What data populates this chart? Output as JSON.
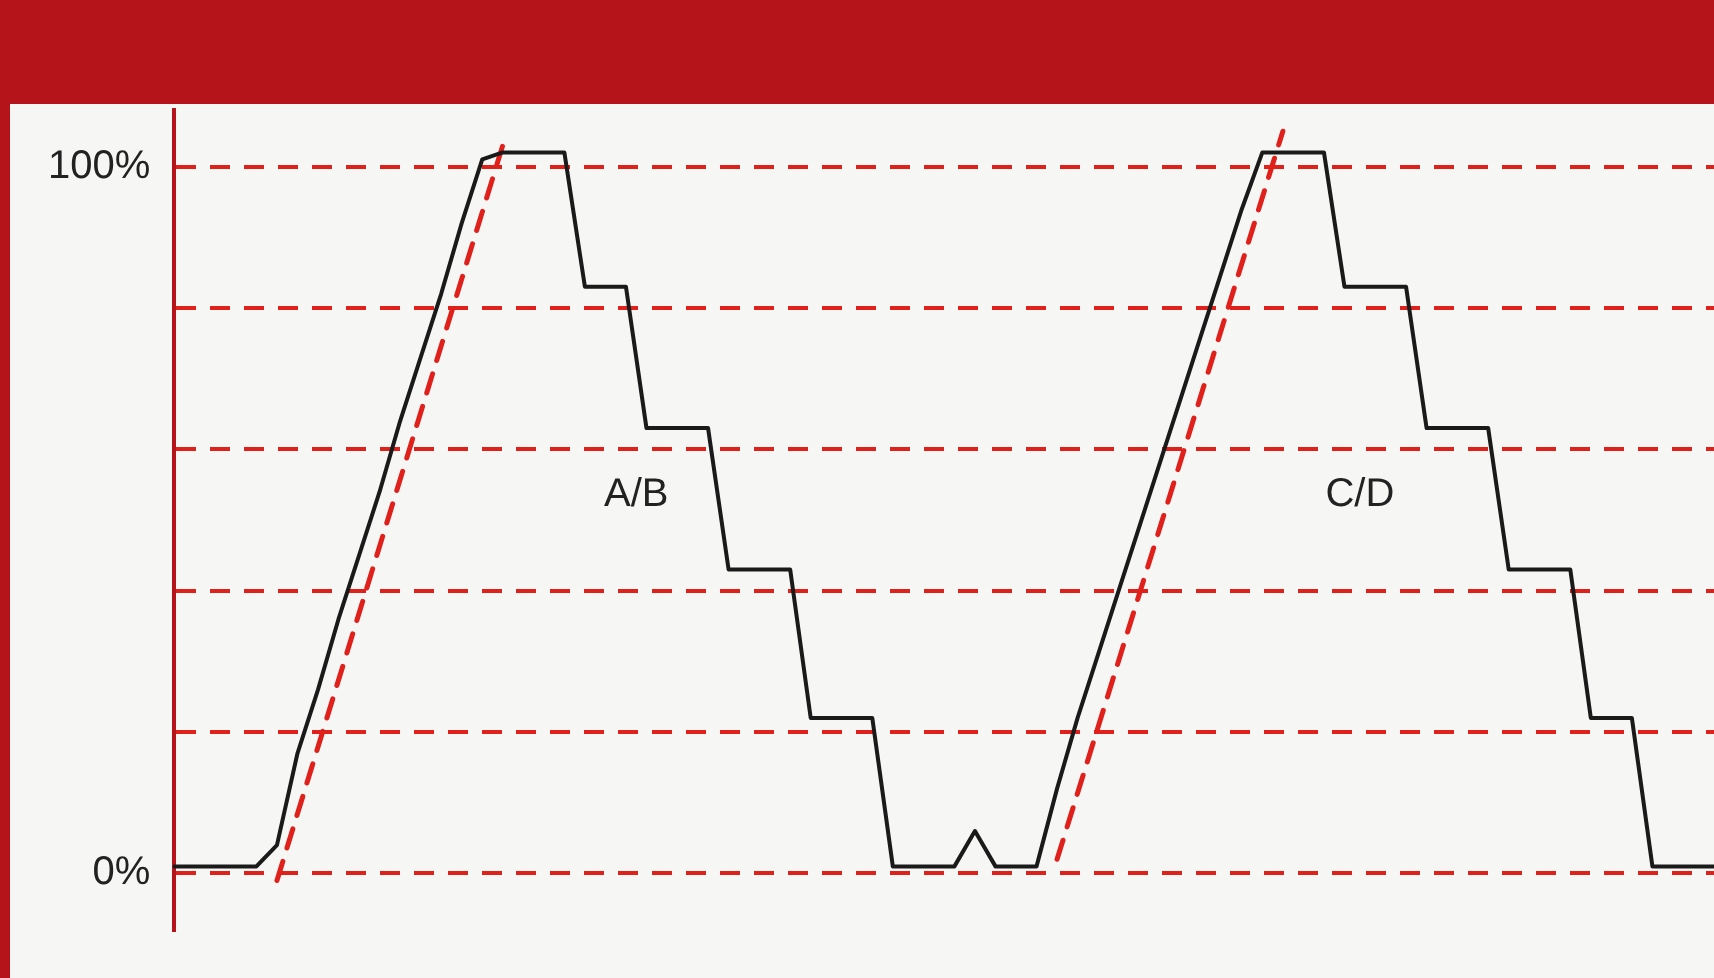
{
  "chart_data": {
    "type": "line",
    "categories": [
      null,
      null,
      null,
      null,
      null,
      null,
      null,
      null,
      null,
      null,
      null,
      null,
      null,
      null,
      null,
      null,
      null,
      null,
      null,
      null,
      null,
      null,
      null,
      null,
      null,
      null,
      null,
      null,
      null,
      null,
      null,
      null,
      null,
      null,
      null,
      null,
      null,
      null,
      null,
      null,
      null,
      null,
      null,
      null,
      null,
      null,
      null,
      null,
      null,
      null,
      null,
      null,
      null,
      null,
      null,
      null,
      null,
      null,
      null,
      null,
      null,
      null,
      null,
      null,
      null,
      null,
      null,
      null,
      null,
      null,
      null,
      null,
      null,
      null,
      null,
      null
    ],
    "series": [
      {
        "color": "#1a1a1a",
        "line_style": "solid",
        "values": [
          1,
          1,
          1,
          1,
          1,
          4,
          17,
          26,
          36,
          45,
          54,
          64,
          73,
          82,
          92,
          101,
          102,
          102,
          102,
          102,
          83,
          83,
          83,
          63,
          63,
          63,
          63,
          43,
          43,
          43,
          43,
          22,
          22,
          22,
          22,
          1,
          1,
          1,
          1,
          6,
          1,
          1,
          1,
          12,
          22,
          31,
          40,
          49,
          58,
          67,
          76,
          85,
          94,
          102,
          102,
          102,
          102,
          83,
          83,
          83,
          83,
          63,
          63,
          63,
          63,
          43,
          43,
          43,
          43,
          22,
          22,
          22,
          1,
          1,
          1,
          1
        ]
      },
      {
        "color": "#e0201b",
        "line_style": "dashed",
        "values": [
          null,
          null,
          null,
          null,
          null,
          -1,
          null,
          null,
          null,
          null,
          null,
          null,
          null,
          null,
          null,
          null,
          103,
          null,
          null,
          null,
          null,
          null,
          null,
          null,
          null,
          null,
          null,
          null,
          null,
          null,
          null,
          null,
          null,
          null,
          null,
          null,
          null,
          null,
          null,
          null,
          null,
          null,
          null,
          null,
          null,
          null,
          null,
          null,
          null,
          null,
          null,
          null,
          null,
          null,
          null,
          null,
          null,
          null,
          null,
          null,
          null,
          null,
          null,
          null,
          null,
          null,
          null,
          null,
          null,
          null,
          null,
          null,
          null,
          null,
          null,
          null
        ]
      },
      {
        "color": "#e0201b",
        "line_style": "dashed",
        "values": [
          null,
          null,
          null,
          null,
          null,
          null,
          null,
          null,
          null,
          null,
          null,
          null,
          null,
          null,
          null,
          null,
          null,
          null,
          null,
          null,
          null,
          null,
          null,
          null,
          null,
          null,
          null,
          null,
          null,
          null,
          null,
          null,
          null,
          null,
          null,
          null,
          null,
          null,
          null,
          null,
          null,
          null,
          null,
          2,
          null,
          null,
          null,
          null,
          null,
          null,
          null,
          null,
          null,
          null,
          105,
          null,
          null,
          null,
          null,
          null,
          null,
          null,
          null,
          null,
          null,
          null,
          null,
          null,
          null,
          null,
          null,
          null,
          null,
          null,
          null,
          null
        ]
      }
    ],
    "ylim": [
      -8,
      108
    ],
    "yticks": [
      {
        "value": 0,
        "label": "0%"
      },
      {
        "value": 20,
        "label": null
      },
      {
        "value": 40,
        "label": null
      },
      {
        "value": 60,
        "label": null
      },
      {
        "value": 80,
        "label": null
      },
      {
        "value": 100,
        "label": "100%"
      }
    ],
    "grid": "y",
    "legend": false,
    "marker": "none",
    "tick_labels": "y",
    "annotations": [
      "A/B",
      "C/D"
    ]
  }
}
